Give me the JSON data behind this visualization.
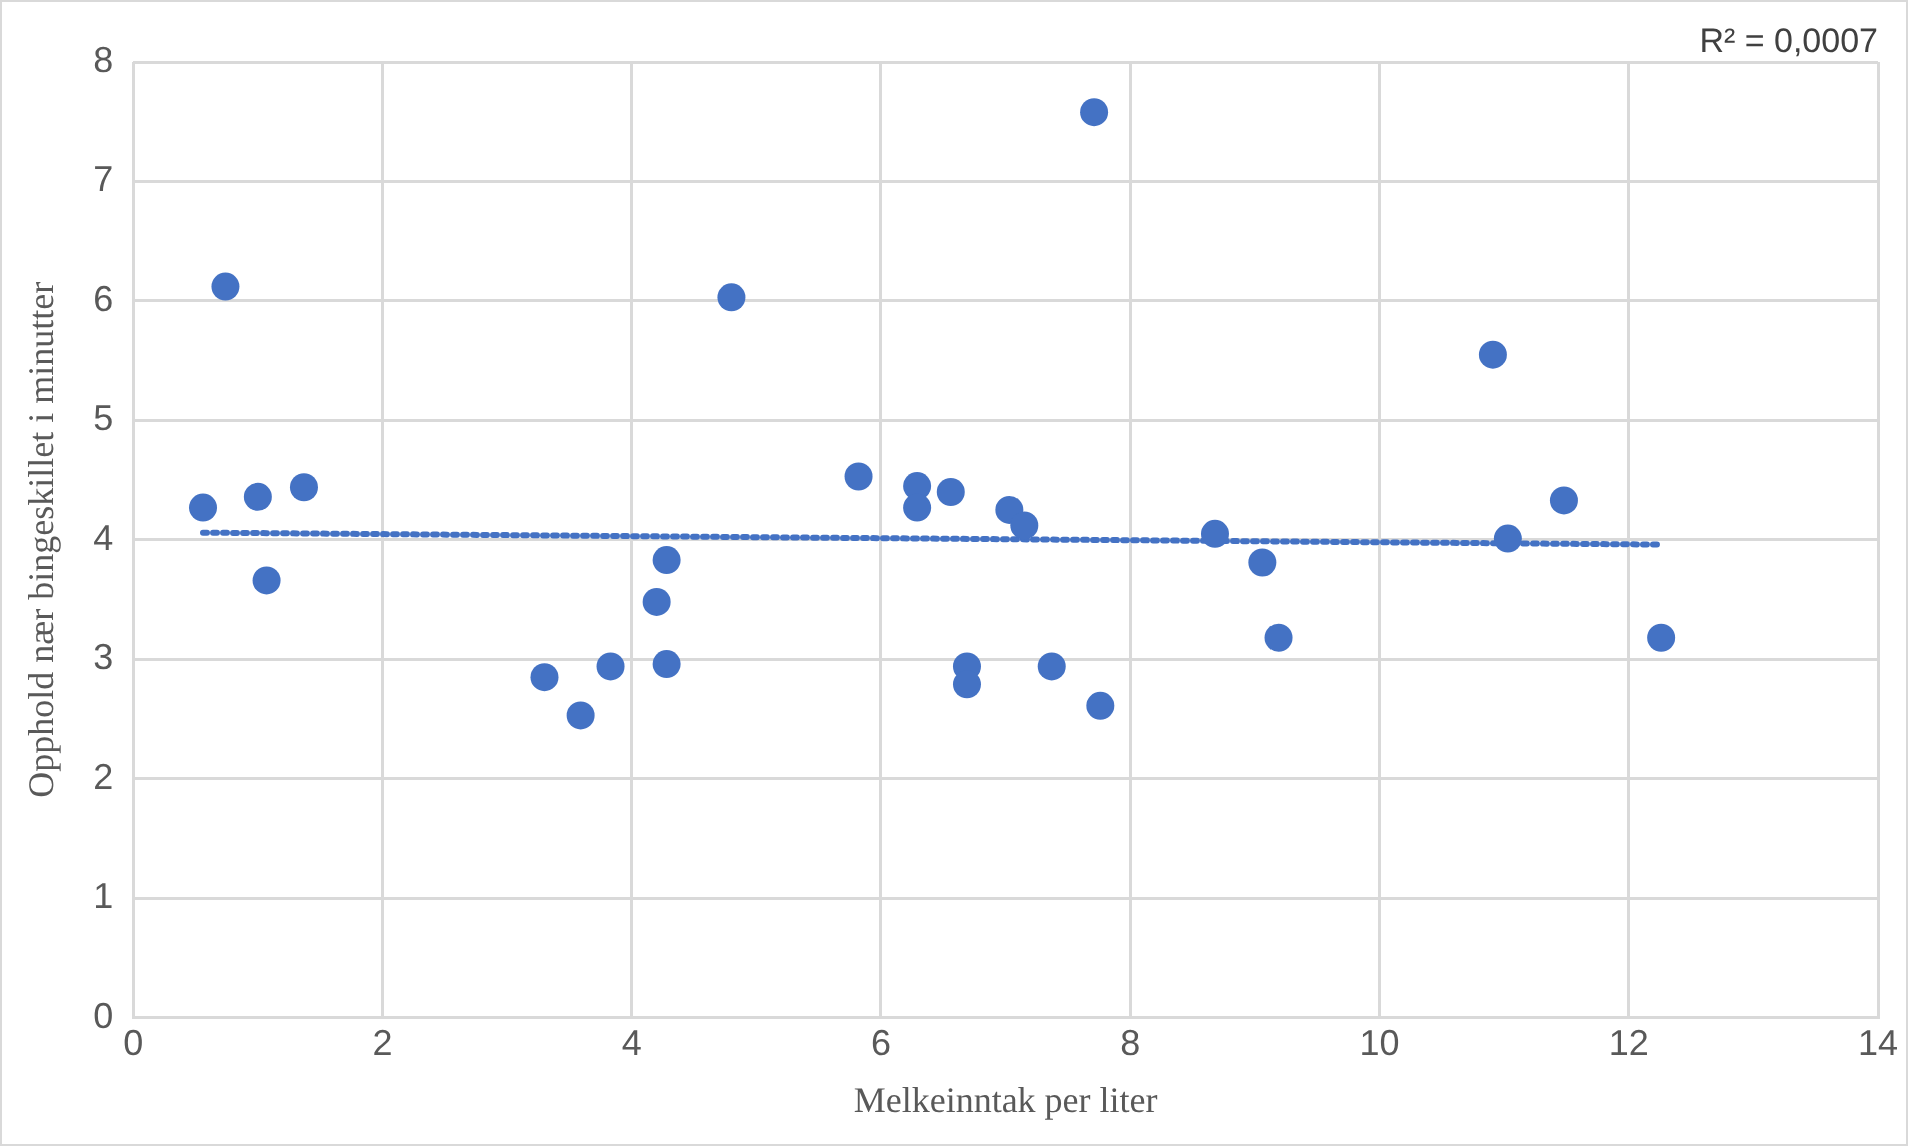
{
  "chart_data": {
    "type": "scatter",
    "xlabel": "Melkeinntak per liter",
    "ylabel": "Opphold nær bingeskillet i minutter",
    "annotations": [
      "R² = 0,0007"
    ],
    "xlim": [
      0,
      14
    ],
    "xticks": [
      0,
      2,
      4,
      6,
      8,
      10,
      12,
      14
    ],
    "ylim": [
      0,
      8
    ],
    "yticks": [
      0,
      1,
      2,
      3,
      4,
      5,
      6,
      7,
      8
    ],
    "grid": true,
    "legend": false,
    "marker": "circle",
    "series": [
      {
        "color": "#4472c4",
        "x": [
          0.56,
          0.74,
          1.0,
          1.07,
          1.37,
          3.3,
          3.59,
          3.83,
          4.2,
          4.28,
          4.28,
          4.8,
          5.82,
          6.29,
          6.29,
          6.56,
          6.69,
          6.69,
          7.03,
          7.15,
          7.37,
          7.71,
          7.76,
          8.68,
          9.06,
          9.19,
          10.91,
          11.03,
          11.48,
          12.26
        ],
        "values": [
          4.27,
          6.12,
          4.36,
          3.66,
          4.44,
          2.85,
          2.53,
          2.94,
          3.48,
          3.83,
          2.96,
          6.03,
          4.53,
          4.45,
          4.27,
          4.4,
          2.94,
          2.79,
          4.25,
          4.12,
          2.94,
          7.58,
          2.61,
          4.05,
          3.81,
          3.18,
          5.55,
          4.01,
          4.33,
          3.18
        ]
      },
      {
        "type": "line",
        "color": "#4472c4",
        "line_style": "dotted",
        "marker": "none",
        "x": [
          0.56,
          12.26
        ],
        "values": [
          4.06,
          3.96
        ]
      }
    ]
  }
}
